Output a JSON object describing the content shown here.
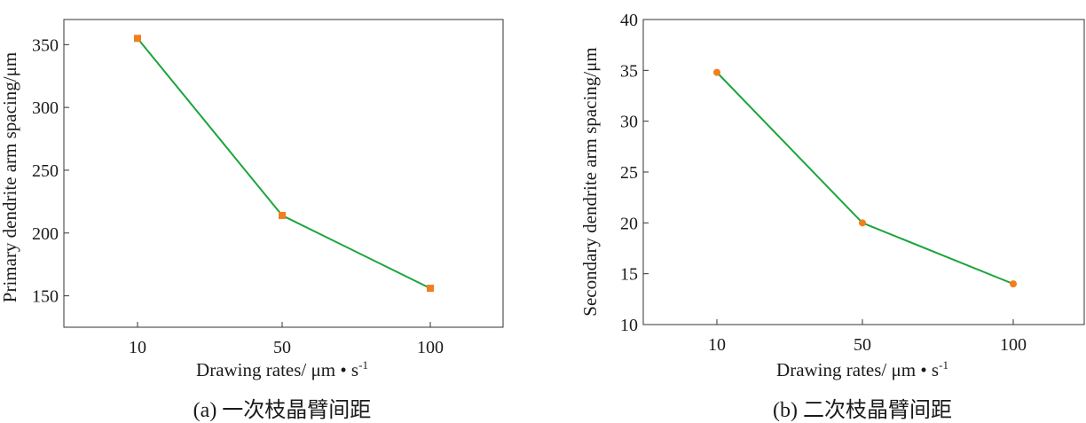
{
  "colors": {
    "line": "#1aa53a",
    "marker": "#f07f1c",
    "frame": "#333333"
  },
  "chart_data": [
    {
      "type": "line",
      "marker": "square",
      "categories": [
        "10",
        "50",
        "100"
      ],
      "series": [
        {
          "values": [
            355,
            214,
            156
          ]
        }
      ],
      "xlabel": "Drawing rates/ μm • s",
      "xlabel_sup": "-1",
      "ylabel": "Primary dendrite arm spacing/μm",
      "yticks": [
        150,
        200,
        250,
        300,
        350
      ],
      "ylim": [
        125,
        370
      ],
      "caption": "(a) 一次枝晶臂间距",
      "grid": false
    },
    {
      "type": "line",
      "marker": "circle",
      "categories": [
        "10",
        "50",
        "100"
      ],
      "series": [
        {
          "values": [
            34.8,
            20,
            14
          ]
        }
      ],
      "xlabel": "Drawing rates/ μm • s",
      "xlabel_sup": "-1",
      "ylabel": "Secondary dendrite arm spacing/μm",
      "yticks": [
        10,
        15,
        20,
        25,
        30,
        35,
        40
      ],
      "ylim": [
        10,
        40
      ],
      "caption": "(b) 二次枝晶臂间距",
      "grid": false
    }
  ]
}
